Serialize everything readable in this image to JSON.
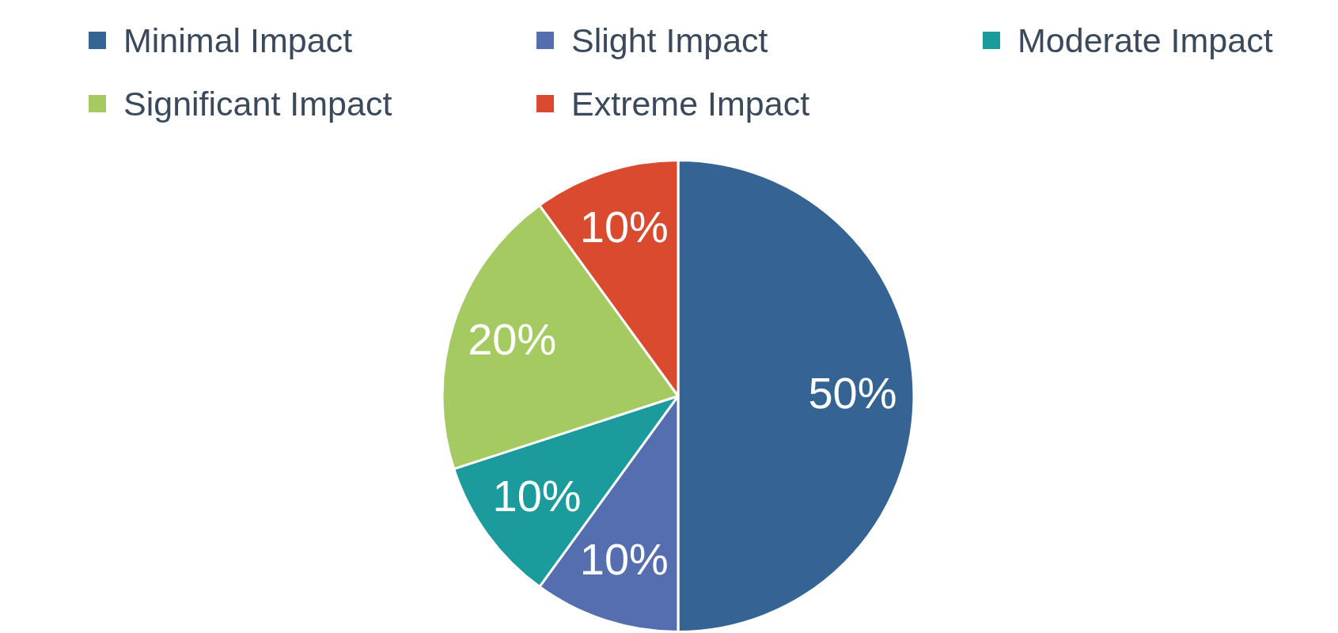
{
  "chart_data": {
    "type": "pie",
    "categories": [
      "Minimal Impact",
      "Slight Impact",
      "Moderate Impact",
      "Significant Impact",
      "Extreme Impact"
    ],
    "values": [
      50,
      10,
      10,
      20,
      10
    ],
    "colors": [
      "#356494",
      "#556eb0",
      "#1b9b9c",
      "#a6ca62",
      "#d94a2e"
    ],
    "value_labels": [
      "50%",
      "10%",
      "10%",
      "20%",
      "10%"
    ],
    "legend": "top"
  }
}
